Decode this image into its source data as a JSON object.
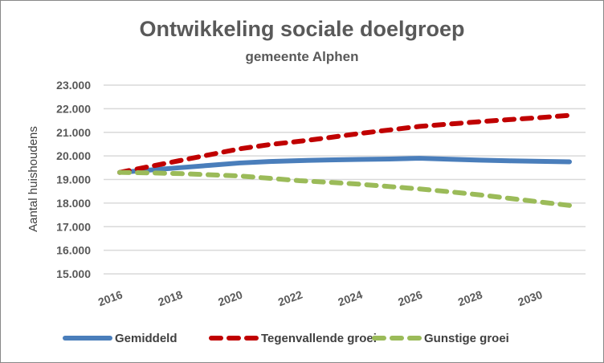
{
  "chart_data": {
    "type": "line",
    "title": "Ontwikkeling sociale doelgroep",
    "subtitle": "gemeente Alphen",
    "xlabel": "",
    "ylabel": "Aantal huishoudens",
    "ylim": [
      15000,
      23000
    ],
    "yticks": [
      15000,
      16000,
      17000,
      18000,
      19000,
      20000,
      21000,
      22000,
      23000
    ],
    "ytick_labels": [
      "15.000",
      "16.000",
      "17.000",
      "18.000",
      "19.000",
      "20.000",
      "21.000",
      "22.000",
      "23.000"
    ],
    "xlim": [
      2016,
      2031
    ],
    "xtick_labels": [
      "2016",
      "2018",
      "2020",
      "2022",
      "2024",
      "2026",
      "2028",
      "2030"
    ],
    "x": [
      2016,
      2017,
      2018,
      2019,
      2020,
      2021,
      2022,
      2023,
      2024,
      2025,
      2026,
      2027,
      2028,
      2029,
      2030,
      2031
    ],
    "grid": true,
    "legend": "bottom",
    "series": [
      {
        "name": "Gemiddeld",
        "color": "#4a7ebb",
        "dash": "solid",
        "values": [
          19300,
          19400,
          19500,
          19600,
          19700,
          19760,
          19800,
          19830,
          19850,
          19870,
          19900,
          19860,
          19820,
          19790,
          19770,
          19750
        ]
      },
      {
        "name": "Tegenvallende groei",
        "color": "#c00000",
        "dash": "dashed",
        "values": [
          19300,
          19550,
          19800,
          20050,
          20300,
          20480,
          20620,
          20780,
          20950,
          21100,
          21250,
          21350,
          21450,
          21540,
          21620,
          21720
        ]
      },
      {
        "name": "Gunstige groei",
        "color": "#9bbb59",
        "dash": "dashed",
        "values": [
          19300,
          19280,
          19250,
          19200,
          19150,
          19050,
          18950,
          18880,
          18800,
          18700,
          18600,
          18480,
          18350,
          18200,
          18050,
          17900
        ]
      }
    ]
  }
}
